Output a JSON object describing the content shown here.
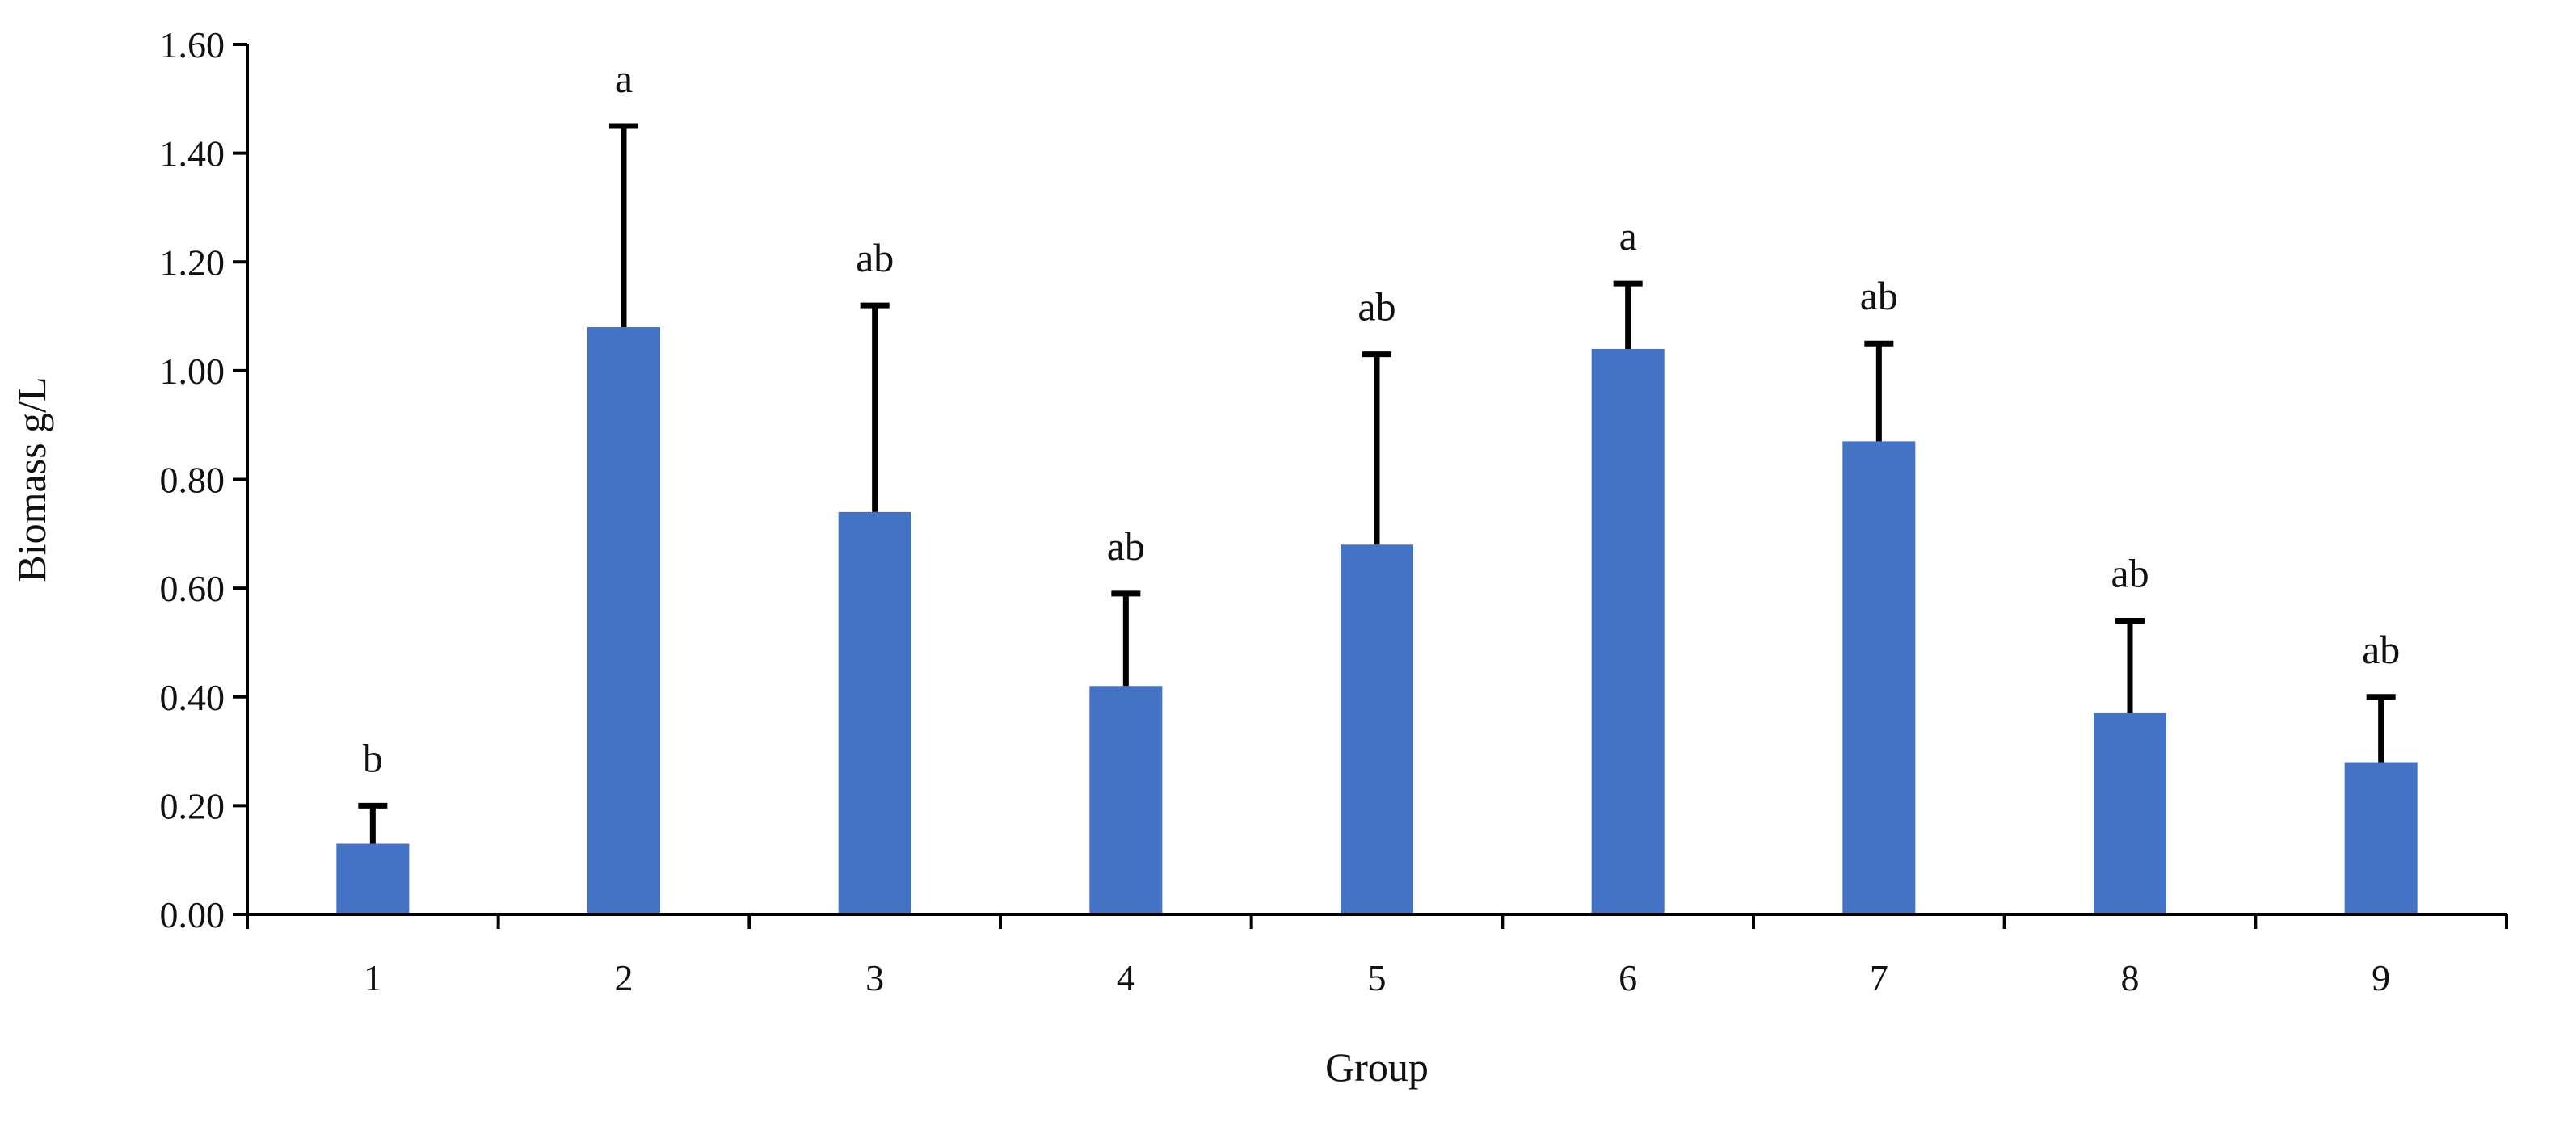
{
  "chart_data": {
    "type": "bar",
    "title": "",
    "xlabel": "Group",
    "ylabel": "Biomass g/L",
    "categories": [
      "1",
      "2",
      "3",
      "4",
      "5",
      "6",
      "7",
      "8",
      "9"
    ],
    "values": [
      0.13,
      1.08,
      0.74,
      0.42,
      0.68,
      1.04,
      0.87,
      0.37,
      0.28
    ],
    "error_upper": [
      0.2,
      1.45,
      1.12,
      0.59,
      1.03,
      1.16,
      1.05,
      0.54,
      0.4
    ],
    "significance_labels": [
      "b",
      "a",
      "ab",
      "ab",
      "ab",
      "a",
      "ab",
      "ab",
      "ab"
    ],
    "ylim": [
      0,
      1.6
    ],
    "yticks": [
      "0.00",
      "0.20",
      "0.40",
      "0.60",
      "0.80",
      "1.00",
      "1.20",
      "1.40",
      "1.60"
    ],
    "grid": false,
    "legend": "none",
    "bar_color": "#4472C4"
  }
}
